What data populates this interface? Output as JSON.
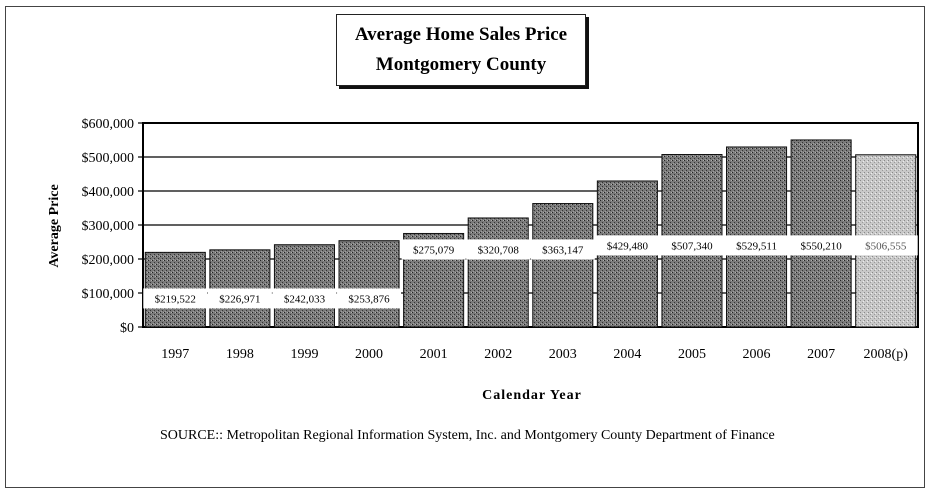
{
  "chart_data": {
    "type": "bar",
    "title": [
      "Average Home Sales Price",
      "Montgomery County"
    ],
    "xlabel": "Calendar Year",
    "ylabel": "Average Price",
    "ylim": [
      0,
      600000
    ],
    "yticks": [
      0,
      100000,
      200000,
      300000,
      400000,
      500000,
      600000
    ],
    "ytick_labels": [
      "$0",
      "$100,000",
      "$200,000",
      "$300,000",
      "$400,000",
      "$500,000",
      "$600,000"
    ],
    "categories": [
      "1997",
      "1998",
      "1999",
      "2000",
      "2001",
      "2002",
      "2003",
      "2004",
      "2005",
      "2006",
      "2007",
      "2008(p)"
    ],
    "values": [
      219522,
      226971,
      242033,
      253876,
      275079,
      320708,
      363147,
      429480,
      507340,
      529511,
      550210,
      506555
    ],
    "data_labels": [
      "$219,522",
      "$226,971",
      "$242,033",
      "$253,876",
      "$275,079",
      "$320,708",
      "$363,147",
      "$429,480",
      "$507,340",
      "$529,511",
      "$550,210",
      "$506,555"
    ],
    "grid": true,
    "legend": "none",
    "colors": {
      "bar": "#6e6e6e",
      "bar_projected": "#bdbdbd",
      "plot_bg": "#ffffff",
      "grid": "#000000"
    }
  },
  "source_note": "SOURCE::  Metropolitan Regional Information System, Inc. and Montgomery County Department of Finance"
}
